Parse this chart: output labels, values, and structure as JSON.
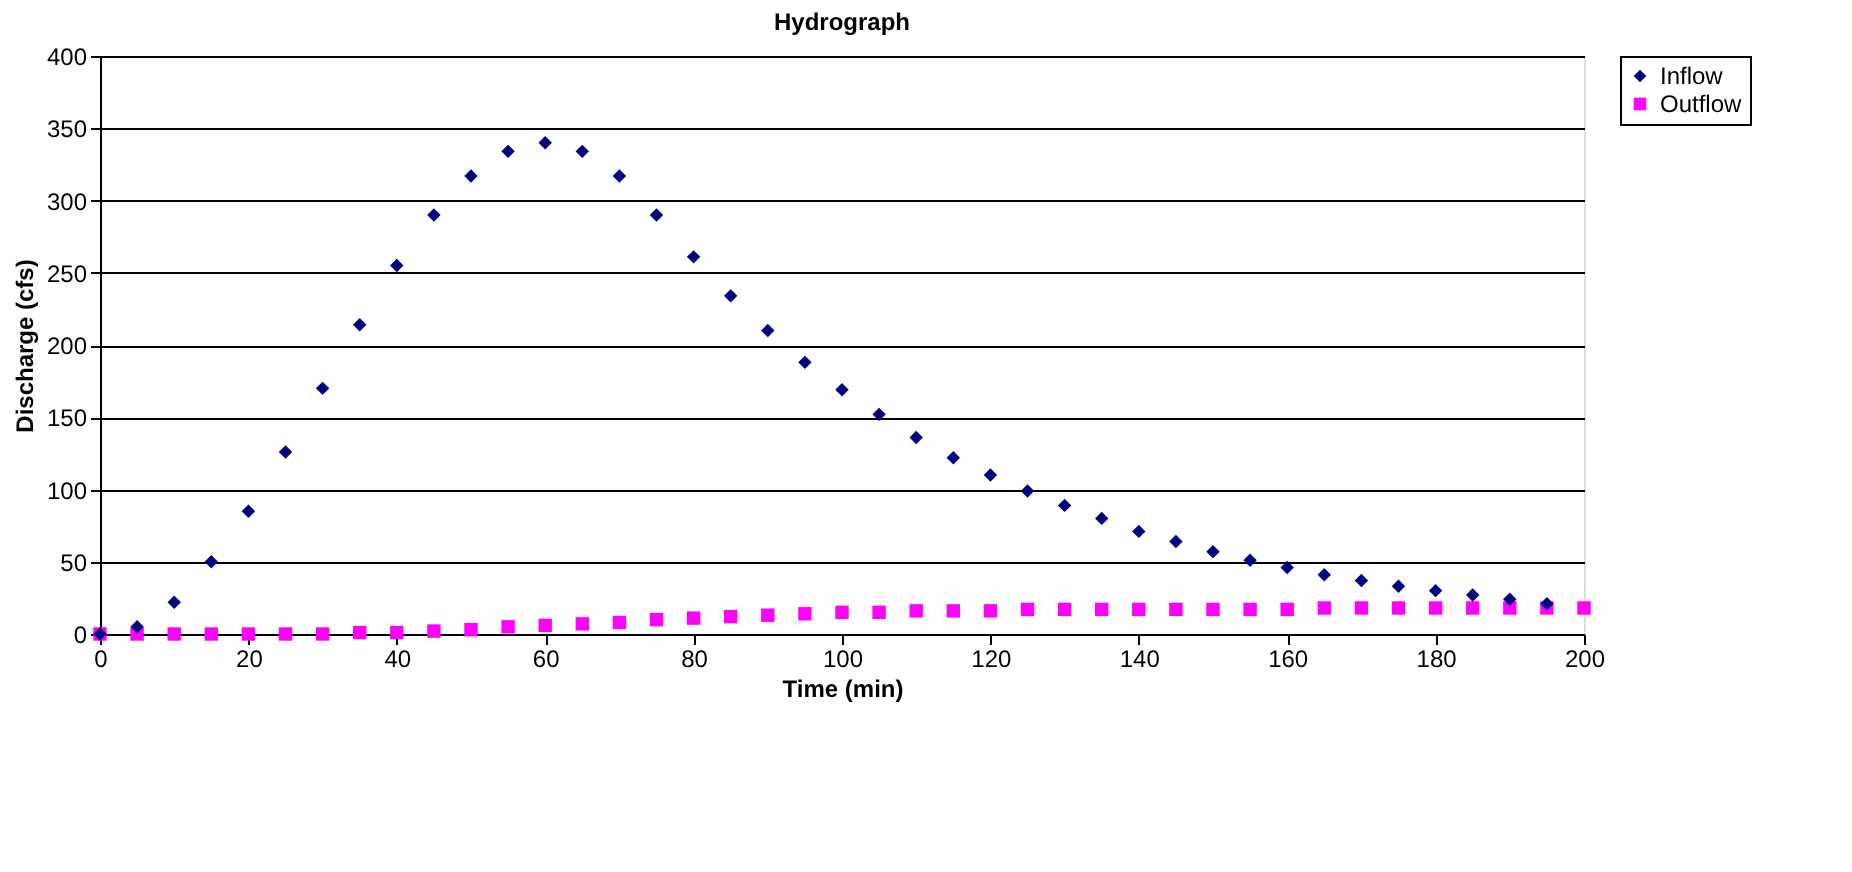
{
  "chart_data": {
    "type": "scatter",
    "title": "Hydrograph",
    "xlabel": "Time (min)",
    "ylabel": "Discharge (cfs)",
    "x": [
      0,
      5,
      10,
      15,
      20,
      25,
      30,
      35,
      40,
      45,
      50,
      55,
      60,
      65,
      70,
      75,
      80,
      85,
      90,
      95,
      100,
      105,
      110,
      115,
      120,
      125,
      130,
      135,
      140,
      145,
      150,
      155,
      160,
      165,
      170,
      175,
      180,
      185,
      190,
      195,
      200
    ],
    "series": [
      {
        "name": "Inflow",
        "color": "#000080",
        "marker": "diamond",
        "values": [
          0,
          5,
          22,
          50,
          85,
          126,
          170,
          214,
          255,
          290,
          317,
          334,
          340,
          334,
          317,
          290,
          261,
          234,
          210,
          188,
          169,
          152,
          136,
          122,
          110,
          99,
          89,
          80,
          71,
          64,
          57,
          51,
          46,
          41,
          37,
          33,
          30,
          27,
          24,
          21,
          null
        ]
      },
      {
        "name": "Outflow",
        "color": "#ff00ff",
        "marker": "square",
        "values": [
          0,
          0,
          0,
          0,
          0,
          0,
          0,
          1,
          1,
          2,
          3,
          5,
          6,
          7,
          8,
          10,
          11,
          12,
          13,
          14,
          15,
          15,
          16,
          16,
          16,
          17,
          17,
          17,
          17,
          17,
          17,
          17,
          17,
          18,
          18,
          18,
          18,
          18,
          18,
          18,
          18
        ]
      }
    ],
    "xlim": [
      0,
      200
    ],
    "xticks": [
      0,
      20,
      40,
      60,
      80,
      100,
      120,
      140,
      160,
      180,
      200
    ],
    "ylim": [
      0,
      400
    ],
    "yticks": [
      0,
      50,
      100,
      150,
      200,
      250,
      300,
      350,
      400
    ],
    "grid": "y",
    "legend": "right"
  }
}
